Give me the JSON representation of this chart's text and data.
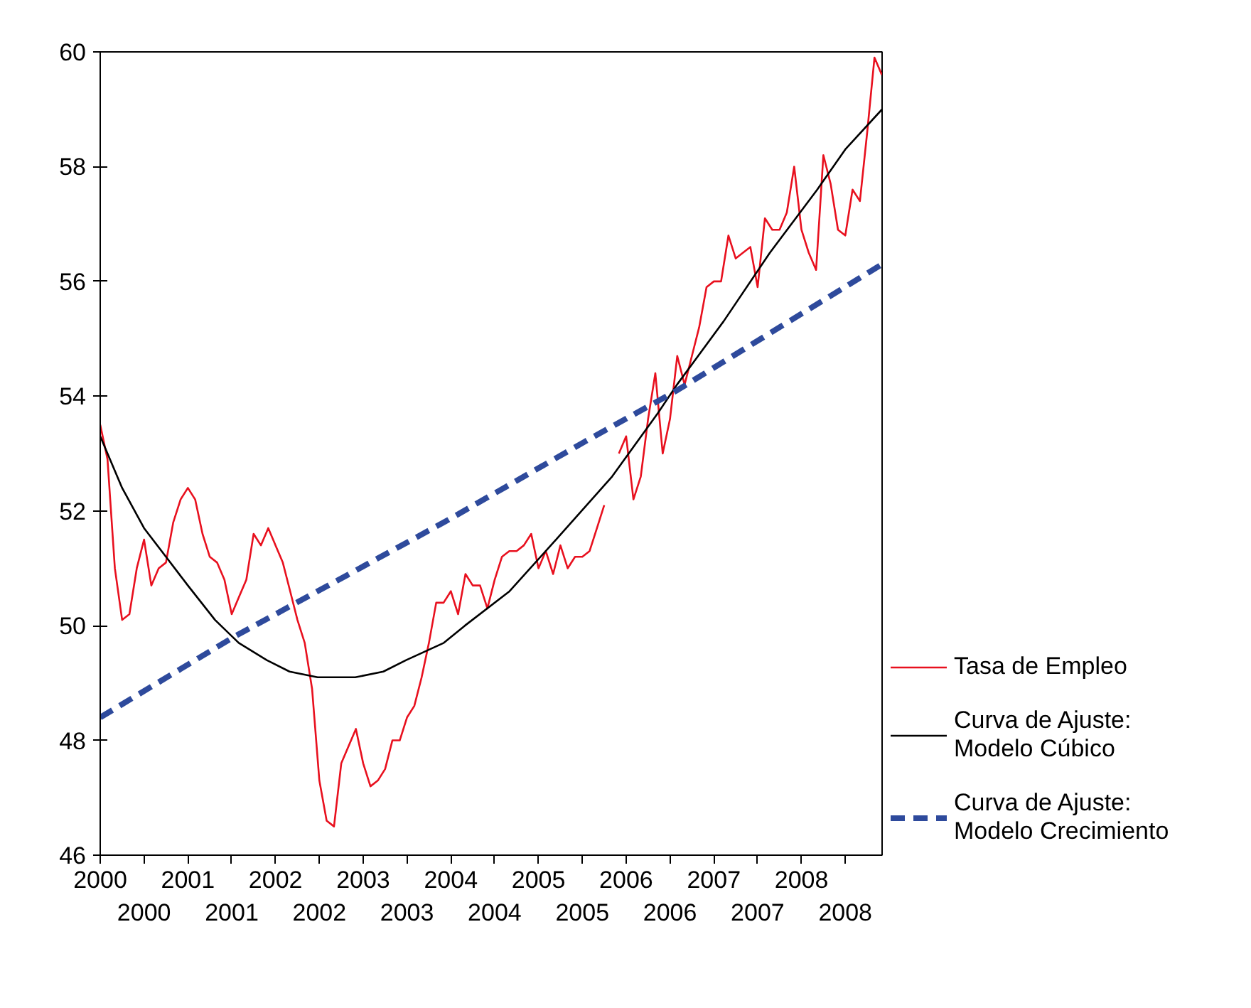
{
  "chart_data": {
    "type": "line",
    "xlim": [
      2000,
      2008.92
    ],
    "ylim": [
      46,
      60
    ],
    "xticks": [
      {
        "value": 2000,
        "label": "2000"
      },
      {
        "value": 2000.5,
        "label": null
      },
      {
        "value": 2001,
        "label": "2001"
      },
      {
        "value": 2001.5,
        "label": null
      },
      {
        "value": 2002,
        "label": "2002"
      },
      {
        "value": 2002.5,
        "label": null
      },
      {
        "value": 2003,
        "label": "2003"
      },
      {
        "value": 2003.5,
        "label": null
      },
      {
        "value": 2004,
        "label": "2004"
      },
      {
        "value": 2004.5,
        "label": null
      },
      {
        "value": 2005,
        "label": "2005"
      },
      {
        "value": 2005.5,
        "label": null
      },
      {
        "value": 2006,
        "label": "2006"
      },
      {
        "value": 2006.5,
        "label": null
      },
      {
        "value": 2007,
        "label": "2007"
      },
      {
        "value": 2007.5,
        "label": null
      },
      {
        "value": 2008,
        "label": "2008"
      },
      {
        "value": 2008.5,
        "label": null
      }
    ],
    "x2lim": [
      2000,
      2008.92
    ],
    "x2ticks": [
      {
        "value": 2000.5,
        "label": "2000"
      },
      {
        "value": 2001.5,
        "label": "2001"
      },
      {
        "value": 2002.5,
        "label": "2002"
      },
      {
        "value": 2003.5,
        "label": "2003"
      },
      {
        "value": 2004.5,
        "label": "2004"
      },
      {
        "value": 2005.5,
        "label": "2005"
      },
      {
        "value": 2006.5,
        "label": "2006"
      },
      {
        "value": 2007.5,
        "label": "2007"
      },
      {
        "value": 2008.5,
        "label": "2008"
      }
    ],
    "yticks": [
      46,
      48,
      50,
      52,
      54,
      56,
      58,
      60
    ],
    "legend": "right",
    "series": [
      {
        "name": "Tasa de Empleo",
        "color": "#e8101e",
        "x": [
          2000,
          2000.083,
          2000.167,
          2000.25,
          2000.333,
          2000.417,
          2000.5,
          2000.583,
          2000.667,
          2000.75,
          2000.833,
          2000.917,
          2001,
          2001.083,
          2001.167,
          2001.25,
          2001.333,
          2001.417,
          2001.5,
          2001.583,
          2001.667,
          2001.75,
          2001.833,
          2001.917,
          2002,
          2002.083,
          2002.167,
          2002.25,
          2002.333,
          2002.417,
          2002.5,
          2002.583,
          2002.667,
          2002.75,
          2002.833,
          2002.917,
          2003,
          2003.083,
          2003.167,
          2003.25,
          2003.333,
          2003.417,
          2003.5,
          2003.583,
          2003.667,
          2003.75,
          2003.833,
          2003.917,
          2004,
          2004.083,
          2004.167,
          2004.25,
          2004.333,
          2004.417,
          2004.5,
          2004.583,
          2004.667,
          2004.75,
          2004.833,
          2004.917,
          2005,
          2005.083,
          2005.167,
          2005.25,
          2005.333,
          2005.417,
          2005.5,
          2005.583,
          2005.667,
          2005.75,
          2005.833,
          2005.917,
          2006,
          2006.083,
          2006.167,
          2006.25,
          2006.333,
          2006.417,
          2006.5,
          2006.583,
          2006.667,
          2006.75,
          2006.833,
          2006.917,
          2007,
          2007.083,
          2007.167,
          2007.25,
          2007.333,
          2007.417,
          2007.5,
          2007.583,
          2007.667,
          2007.75,
          2007.833,
          2007.917,
          2008,
          2008.083,
          2008.167,
          2008.25,
          2008.333,
          2008.417,
          2008.5,
          2008.583,
          2008.667,
          2008.75,
          2008.833,
          2008.917
        ],
        "values": [
          53.5,
          52.9,
          51.0,
          50.1,
          50.2,
          51.0,
          51.5,
          50.7,
          51.0,
          51.1,
          51.8,
          52.2,
          52.4,
          52.2,
          51.6,
          51.2,
          51.1,
          50.8,
          50.2,
          50.5,
          50.8,
          51.6,
          51.4,
          51.7,
          51.4,
          51.1,
          50.6,
          50.1,
          49.7,
          48.9,
          47.3,
          46.6,
          46.5,
          47.6,
          47.9,
          48.2,
          47.6,
          47.2,
          47.3,
          47.5,
          48.0,
          48.0,
          48.4,
          48.6,
          49.1,
          49.7,
          50.4,
          50.4,
          50.6,
          50.2,
          50.9,
          50.7,
          50.7,
          50.3,
          50.8,
          51.2,
          51.3,
          51.3,
          51.4,
          51.6,
          51.0,
          51.3,
          50.9,
          51.4,
          51.0,
          51.2,
          51.2,
          51.3,
          51.7,
          52.1,
          null,
          53.0,
          53.3,
          52.2,
          52.6,
          53.6,
          54.4,
          53.0,
          53.6,
          54.7,
          54.2,
          54.7,
          55.2,
          55.9,
          56.0,
          56.0,
          56.8,
          56.4,
          56.5,
          56.6,
          55.9,
          57.1,
          56.9,
          56.9,
          57.2,
          58.0,
          56.9,
          56.5,
          56.2,
          58.2,
          57.7,
          56.9,
          56.8,
          57.6,
          57.4,
          58.6,
          59.9,
          59.6
        ]
      },
      {
        "name": "Curva de Ajuste: Modelo Cúbico",
        "color": "#000000",
        "x": [
          2000.0,
          2000.25,
          2000.5,
          2000.75,
          2001.0,
          2001.31,
          2001.58,
          2001.9,
          2002.16,
          2002.48,
          2002.91,
          2003.23,
          2003.49,
          2003.92,
          2004.16,
          2004.67,
          2005.2,
          2005.84,
          2006.36,
          2006.58,
          2007.11,
          2007.64,
          2008.18,
          2008.5,
          2008.92
        ],
        "values": [
          53.3,
          52.4,
          51.7,
          51.2,
          50.7,
          50.1,
          49.7,
          49.4,
          49.2,
          49.1,
          49.1,
          49.2,
          49.4,
          49.7,
          50.0,
          50.6,
          51.5,
          52.6,
          53.7,
          54.2,
          55.3,
          56.5,
          57.6,
          58.3,
          59.0
        ]
      },
      {
        "name": "Curva de Ajuste: Modelo Crecimiento",
        "color": "#2e4a9c",
        "line_style": "dashed",
        "x": [
          2000.0,
          2001.52,
          2003.92,
          2005.52,
          2006.58,
          2008.92
        ],
        "values": [
          48.4,
          49.8,
          51.8,
          53.2,
          54.1,
          56.3
        ]
      }
    ]
  }
}
